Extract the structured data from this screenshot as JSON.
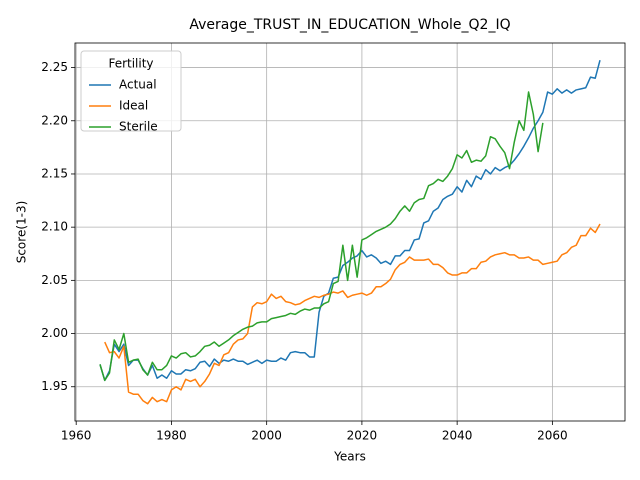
{
  "chart_data": {
    "type": "line",
    "title": "Average_TRUST_IN_EDUCATION_Whole_Q2_IQ",
    "x_label": "Years",
    "y_label": "Score(1-3)",
    "legend_title": "Fertility",
    "legend_position": "upper left",
    "grid": true,
    "x": [
      1965,
      1966,
      1967,
      1968,
      1969,
      1970,
      1971,
      1972,
      1973,
      1974,
      1975,
      1976,
      1977,
      1978,
      1979,
      1980,
      1981,
      1982,
      1983,
      1984,
      1985,
      1986,
      1987,
      1988,
      1989,
      1990,
      1991,
      1992,
      1993,
      1994,
      1995,
      1996,
      1997,
      1998,
      1999,
      2000,
      2001,
      2002,
      2003,
      2004,
      2005,
      2006,
      2007,
      2008,
      2009,
      2010,
      2011,
      2012,
      2013,
      2014,
      2015,
      2016,
      2017,
      2018,
      2019,
      2020,
      2021,
      2022,
      2023,
      2024,
      2025,
      2026,
      2027,
      2028,
      2029,
      2030,
      2031,
      2032,
      2033,
      2034,
      2035,
      2036,
      2037,
      2038,
      2039,
      2040,
      2041,
      2042,
      2043,
      2044,
      2045,
      2046,
      2047,
      2048,
      2049,
      2050,
      2051,
      2052,
      2053,
      2054,
      2055,
      2056,
      2057,
      2058,
      2059,
      2060,
      2061,
      2062,
      2063,
      2064,
      2065,
      2066,
      2067,
      2068,
      2069,
      2070
    ],
    "series": [
      {
        "name": "Actual",
        "color": "#1f77b4",
        "values": [
          1.971,
          1.956,
          1.965,
          1.99,
          1.983,
          1.99,
          1.97,
          1.975,
          1.975,
          1.967,
          1.961,
          1.97,
          1.958,
          1.961,
          1.958,
          1.965,
          1.962,
          1.962,
          1.966,
          1.965,
          1.967,
          1.973,
          1.974,
          1.969,
          1.976,
          1.972,
          1.975,
          1.974,
          1.976,
          1.974,
          1.974,
          1.971,
          1.973,
          1.975,
          1.972,
          1.975,
          1.974,
          1.974,
          1.977,
          1.975,
          1.982,
          1.983,
          1.982,
          1.982,
          1.978,
          1.978,
          2.02,
          2.035,
          2.038,
          2.052,
          2.053,
          2.064,
          2.067,
          2.071,
          2.073,
          2.078,
          2.072,
          2.074,
          2.071,
          2.066,
          2.068,
          2.065,
          2.073,
          2.073,
          2.078,
          2.078,
          2.088,
          2.089,
          2.104,
          2.106,
          2.115,
          2.118,
          2.126,
          2.129,
          2.131,
          2.138,
          2.133,
          2.144,
          2.138,
          2.148,
          2.145,
          2.154,
          2.15,
          2.156,
          2.153,
          2.156,
          2.158,
          2.163,
          2.169,
          2.176,
          2.184,
          2.193,
          2.2,
          2.208,
          2.227,
          2.225,
          2.23,
          2.226,
          2.229,
          2.226,
          2.229,
          2.23,
          2.231,
          2.241,
          2.24,
          2.257
        ]
      },
      {
        "name": "Ideal",
        "color": "#ff7f0e",
        "values": [
          null,
          1.992,
          1.982,
          1.983,
          1.977,
          1.988,
          1.945,
          1.943,
          1.943,
          1.937,
          1.934,
          1.94,
          1.936,
          1.938,
          1.936,
          1.947,
          1.95,
          1.947,
          1.957,
          1.955,
          1.957,
          1.95,
          1.955,
          1.962,
          1.972,
          1.97,
          1.98,
          1.982,
          1.99,
          1.994,
          1.995,
          2.0,
          2.025,
          2.029,
          2.028,
          2.03,
          2.037,
          2.033,
          2.035,
          2.03,
          2.029,
          2.027,
          2.028,
          2.031,
          2.033,
          2.035,
          2.034,
          2.036,
          2.037,
          2.039,
          2.038,
          2.04,
          2.034,
          2.036,
          2.037,
          2.038,
          2.036,
          2.038,
          2.044,
          2.044,
          2.047,
          2.051,
          2.06,
          2.065,
          2.067,
          2.072,
          2.069,
          2.069,
          2.069,
          2.07,
          2.065,
          2.065,
          2.062,
          2.057,
          2.055,
          2.055,
          2.057,
          2.057,
          2.061,
          2.061,
          2.067,
          2.068,
          2.072,
          2.074,
          2.075,
          2.076,
          2.074,
          2.074,
          2.071,
          2.071,
          2.072,
          2.069,
          2.069,
          2.065,
          2.066,
          2.067,
          2.068,
          2.074,
          2.076,
          2.081,
          2.083,
          2.092,
          2.092,
          2.099,
          2.095,
          2.103
        ]
      },
      {
        "name": "Sterile",
        "color": "#2ca02c",
        "values": [
          1.971,
          1.956,
          1.963,
          1.994,
          1.985,
          2.0,
          1.973,
          1.975,
          1.976,
          1.966,
          1.961,
          1.973,
          1.966,
          1.966,
          1.97,
          1.979,
          1.977,
          1.981,
          1.982,
          1.978,
          1.979,
          1.983,
          1.988,
          1.989,
          1.992,
          1.988,
          1.991,
          1.994,
          1.998,
          2.001,
          2.004,
          2.006,
          2.007,
          2.01,
          2.011,
          2.011,
          2.014,
          2.015,
          2.016,
          2.017,
          2.019,
          2.018,
          2.021,
          2.023,
          2.022,
          2.024,
          2.024,
          2.028,
          2.03,
          2.047,
          2.049,
          2.083,
          2.05,
          2.083,
          2.053,
          2.088,
          2.09,
          2.093,
          2.096,
          2.098,
          2.1,
          2.103,
          2.108,
          2.115,
          2.12,
          2.115,
          2.123,
          2.126,
          2.127,
          2.139,
          2.141,
          2.145,
          2.143,
          2.148,
          2.155,
          2.168,
          2.165,
          2.172,
          2.161,
          2.163,
          2.162,
          2.167,
          2.185,
          2.183,
          2.176,
          2.17,
          2.155,
          2.18,
          2.2,
          2.191,
          2.227,
          2.206,
          2.171,
          2.198,
          null,
          null,
          null,
          null,
          null,
          null,
          null,
          null,
          null,
          null,
          null,
          null
        ]
      }
    ],
    "xlim": [
      1959.75,
      2075.25
    ],
    "xticks": [
      1960,
      1980,
      2000,
      2020,
      2040,
      2060
    ],
    "ylim": [
      1.9178,
      2.2731
    ],
    "yticks": [
      1.95,
      {
        "value": 2,
        "label": "2.00"
      },
      2.05,
      {
        "value": 2.1,
        "label": "2.10"
      },
      2.15,
      {
        "value": 2.2,
        "label": "2.20"
      },
      2.25
    ]
  }
}
